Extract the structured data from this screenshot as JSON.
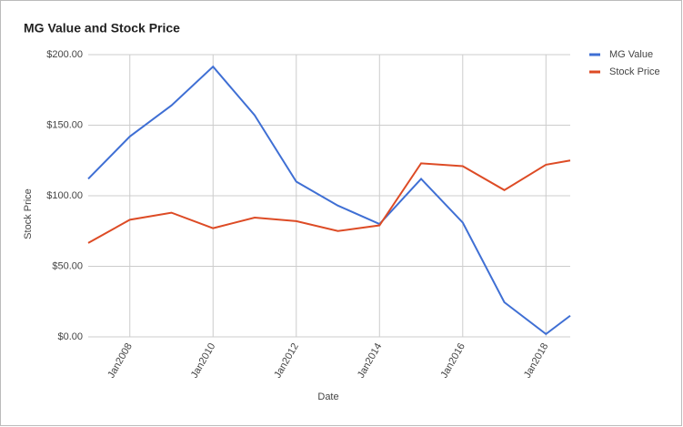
{
  "chart_data": {
    "type": "line",
    "title": "MG Value and Stock Price",
    "x": [
      "2007-01",
      "2008-01",
      "2009-01",
      "2010-01",
      "2011-01",
      "2012-01",
      "2013-01",
      "2014-01",
      "2015-01",
      "2016-01",
      "2017-01",
      "2018-01",
      "2018-08"
    ],
    "series": [
      {
        "name": "MG Value",
        "color": "#3f6fd4",
        "values": [
          112,
          142,
          164,
          191.5,
          157,
          110,
          93,
          80,
          112,
          81,
          24.5,
          2,
          15
        ]
      },
      {
        "name": "Stock Price",
        "color": "#dd4b25",
        "values": [
          66.5,
          83,
          88,
          77,
          84.5,
          82,
          75,
          79,
          123,
          121,
          104,
          122,
          125
        ]
      }
    ],
    "xlim": [
      "2007-01",
      "2018-08"
    ],
    "xticks": [
      {
        "value": "2008-01",
        "label": "Jan2008"
      },
      {
        "value": "2010-01",
        "label": "Jan2010"
      },
      {
        "value": "2012-01",
        "label": "Jan2012"
      },
      {
        "value": "2014-01",
        "label": "Jan2014"
      },
      {
        "value": "2016-01",
        "label": "Jan2016"
      },
      {
        "value": "2018-01",
        "label": "Jan2018"
      }
    ],
    "ylim": [
      0,
      200
    ],
    "yticks": [
      {
        "value": 0,
        "label": "$0.00"
      },
      {
        "value": 50,
        "label": "$50.00"
      },
      {
        "value": 100,
        "label": "$100.00"
      },
      {
        "value": 150,
        "label": "$150.00"
      },
      {
        "value": 200,
        "label": "$200.00"
      }
    ],
    "xlabel": "Date",
    "ylabel": "Stock Price",
    "grid": true,
    "legend": "right"
  }
}
